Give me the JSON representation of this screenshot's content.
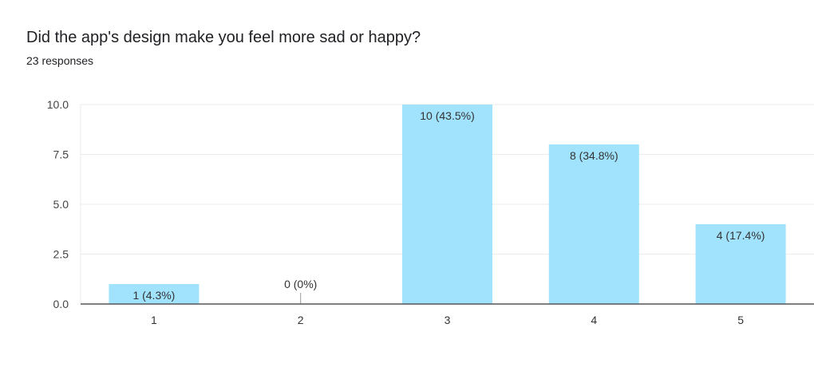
{
  "chart_data": {
    "type": "bar",
    "title": "Did the app's design make you feel more sad or happy?",
    "subtitle": "23 responses",
    "categories": [
      "1",
      "2",
      "3",
      "4",
      "5"
    ],
    "values": [
      1,
      0,
      10,
      8,
      4
    ],
    "data_labels": [
      "1 (4.3%)",
      "0 (0%)",
      "10 (43.5%)",
      "8 (34.8%)",
      "4 (17.4%)"
    ],
    "yticks": [
      "0.0",
      "2.5",
      "5.0",
      "7.5",
      "10.0"
    ],
    "ylim": [
      0,
      10
    ],
    "grid": true,
    "bar_color": "#a1e2fd",
    "xlabel": "",
    "ylabel": ""
  }
}
